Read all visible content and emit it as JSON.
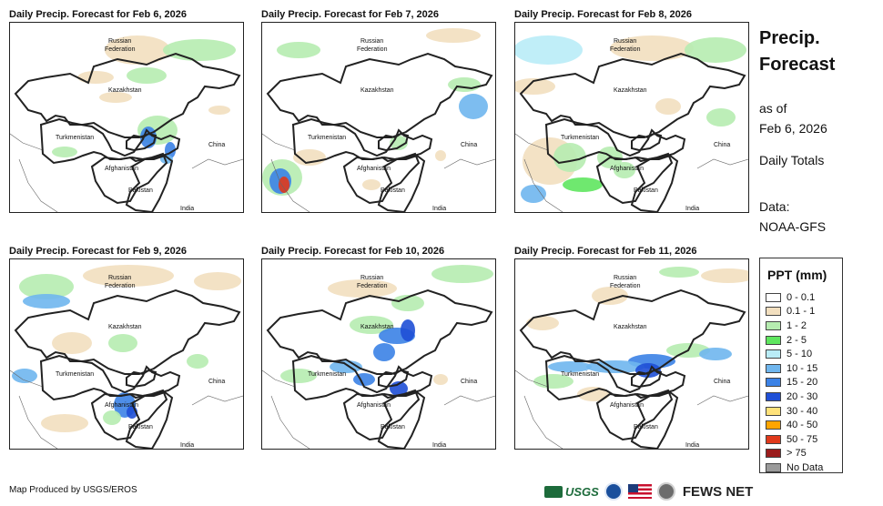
{
  "panels": [
    {
      "title": "Daily Precip. Forecast for Feb 6, 2026"
    },
    {
      "title": "Daily Precip. Forecast for Feb 7, 2026"
    },
    {
      "title": "Daily Precip. Forecast for Feb 8, 2026"
    },
    {
      "title": "Daily Precip. Forecast for Feb 9, 2026"
    },
    {
      "title": "Daily Precip. Forecast for Feb 10, 2026"
    },
    {
      "title": "Daily Precip. Forecast for Feb 11, 2026"
    }
  ],
  "map_labels": {
    "russia_1": "Russian",
    "russia_2": "Federation",
    "kazakhstan": "Kazakhstan",
    "turkmenistan": "Turkmenistan",
    "afghanistan": "Afghanistan",
    "pakistan": "Pakistan",
    "china": "China",
    "india": "India"
  },
  "side": {
    "title_1": "Precip.",
    "title_2": "Forecast",
    "asof_1": "as of",
    "asof_2": "Feb 6, 2026",
    "totals": "Daily Totals",
    "data_1": "Data:",
    "data_2": "NOAA-GFS"
  },
  "legend": {
    "title": "PPT (mm)",
    "items": [
      {
        "label": "0 - 0.1",
        "color": "#ffffff"
      },
      {
        "label": "0.1 - 1",
        "color": "#f2dfbf"
      },
      {
        "label": "1 - 2",
        "color": "#b6ecb0"
      },
      {
        "label": "2 - 5",
        "color": "#5fe65f"
      },
      {
        "label": "5 - 10",
        "color": "#b9ecf7"
      },
      {
        "label": "10 - 15",
        "color": "#6fb6ee"
      },
      {
        "label": "15 - 20",
        "color": "#3b82e6"
      },
      {
        "label": "20 - 30",
        "color": "#1f4fd6"
      },
      {
        "label": "30 - 40",
        "color": "#ffe27a"
      },
      {
        "label": "40 - 50",
        "color": "#ffa500"
      },
      {
        "label": "50 - 75",
        "color": "#e0391b"
      },
      {
        "label": "> 75",
        "color": "#9b1c1c"
      },
      {
        "label": "No Data",
        "color": "#9a9a9a"
      }
    ]
  },
  "footer": {
    "credit": "Map Produced by USGS/EROS",
    "usgs": "USGS",
    "fews": "FEWS NET"
  }
}
